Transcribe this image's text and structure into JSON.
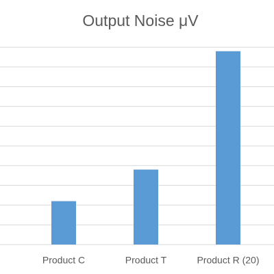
{
  "chart_data": {
    "type": "bar",
    "title": "Output Noise μV",
    "categories": [
      "Product C",
      "Product T",
      "Product R (20)"
    ],
    "values": [
      2.2,
      3.8,
      9.8
    ],
    "color": "#5b9bd5",
    "ylim": [
      0,
      10
    ],
    "yticks": [
      0,
      1,
      2,
      3,
      4,
      5,
      6,
      7,
      8,
      9,
      10
    ],
    "grid": true
  }
}
